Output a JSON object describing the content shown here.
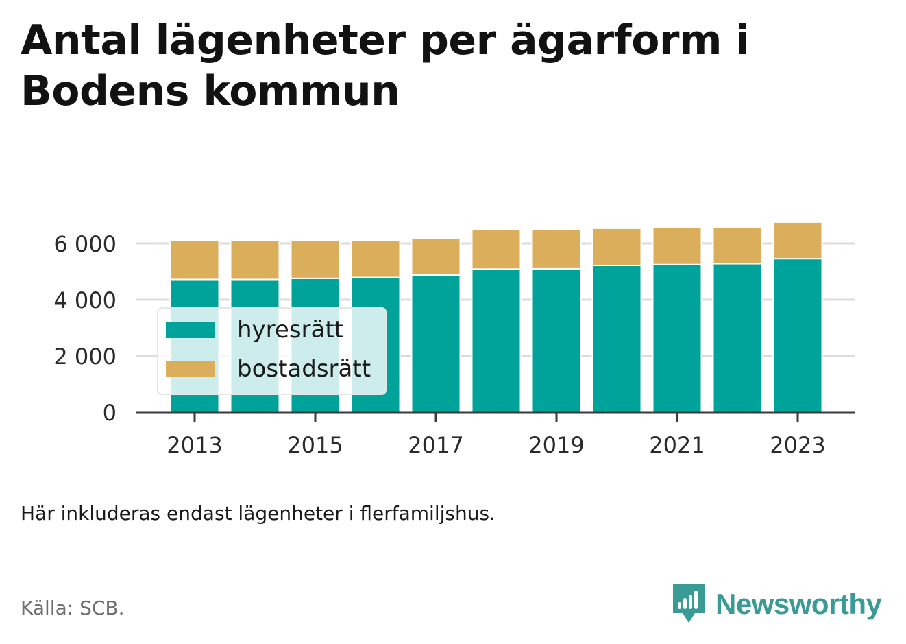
{
  "title": "Antal lägenheter per ägarform i Bodens kommun",
  "note": "Här inkluderas endast lägenheter i flerfamiljshus.",
  "source": "Källa: SCB.",
  "brand": {
    "name": "Newsworthy",
    "icon": "newsworthy-logo-icon",
    "color": "#3a9a96"
  },
  "chart_data": {
    "type": "bar",
    "stacked": true,
    "x": [
      2013,
      2014,
      2015,
      2016,
      2017,
      2018,
      2019,
      2020,
      2021,
      2022,
      2023
    ],
    "xticks": [
      "2013",
      "2015",
      "2017",
      "2019",
      "2021",
      "2023"
    ],
    "yticks": [
      "0",
      "2 000",
      "4 000",
      "6 000"
    ],
    "ylim": [
      0,
      6800
    ],
    "grid": true,
    "legend_position": "bottom-left",
    "series": [
      {
        "name": "hyresrätt",
        "color": "#00a39a",
        "values": [
          4720,
          4720,
          4760,
          4790,
          4880,
          5090,
          5100,
          5220,
          5250,
          5280,
          5460
        ]
      },
      {
        "name": "bostadsrätt",
        "color": "#dbae5c",
        "values": [
          1380,
          1380,
          1340,
          1330,
          1310,
          1400,
          1400,
          1320,
          1320,
          1300,
          1300
        ]
      }
    ]
  }
}
